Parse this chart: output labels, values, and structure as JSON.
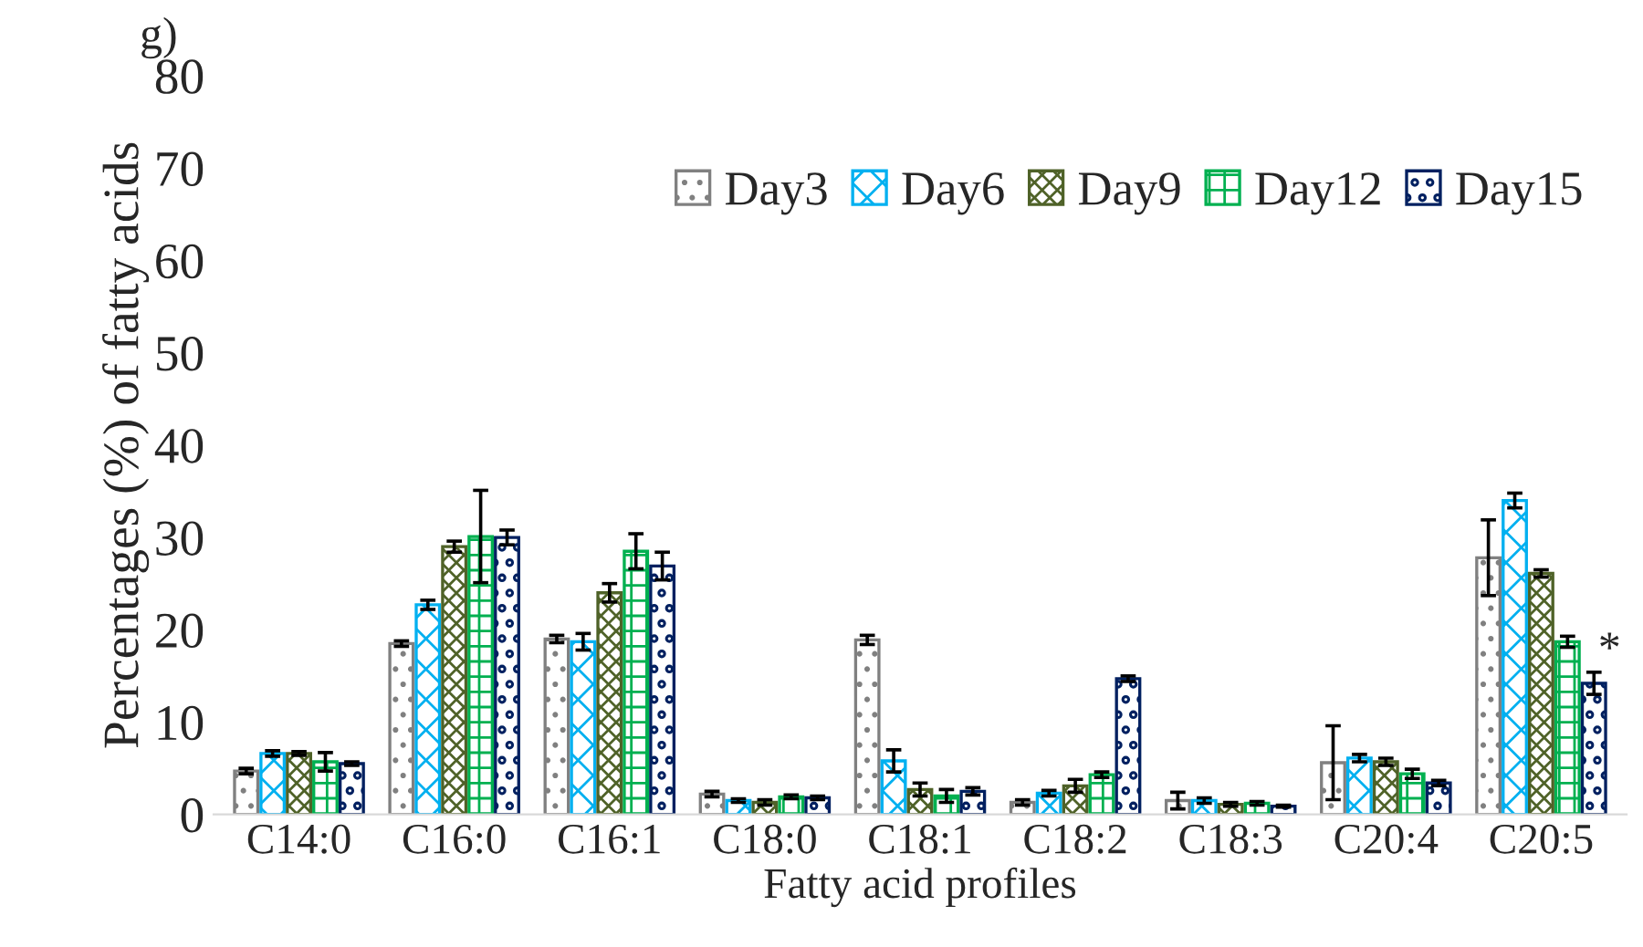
{
  "chart_data": {
    "type": "bar",
    "xlabel": "Fatty acid profiles",
    "ylabel": "Percentages (%) of fatty acids",
    "categories": [
      "C14:0",
      "C16:0",
      "C16:1",
      "C18:0",
      "C18:1",
      "C18:2",
      "C18:3",
      "C20:4",
      "C20:5"
    ],
    "ylim": [
      0,
      80
    ],
    "yticks": [
      0,
      10,
      20,
      30,
      40,
      50,
      60,
      70,
      80
    ],
    "grid": false,
    "legend": "top right",
    "annotations": [
      "g)",
      "*"
    ],
    "series": [
      {
        "name": "Day3",
        "color": "#808080",
        "values": [
          4.7,
          18.5,
          19.0,
          2.2,
          18.9,
          1.3,
          1.5,
          5.6,
          27.8
        ],
        "errors": [
          0.3,
          0.3,
          0.4,
          0.3,
          0.5,
          0.3,
          0.9,
          4.0,
          4.1
        ]
      },
      {
        "name": "Day6",
        "color": "#00b0f0",
        "values": [
          6.6,
          22.7,
          18.7,
          1.5,
          5.8,
          2.3,
          1.5,
          6.1,
          34.0
        ],
        "errors": [
          0.3,
          0.5,
          0.9,
          0.2,
          1.2,
          0.3,
          0.3,
          0.4,
          0.8
        ]
      },
      {
        "name": "Day9",
        "color": "#4f6228",
        "values": [
          6.6,
          29.0,
          24.0,
          1.3,
          2.7,
          3.1,
          1.1,
          5.7,
          26.1
        ],
        "errors": [
          0.2,
          0.6,
          1.0,
          0.3,
          0.7,
          0.7,
          0.2,
          0.4,
          0.4
        ]
      },
      {
        "name": "Day12",
        "color": "#00b050",
        "values": [
          5.7,
          30.1,
          28.5,
          1.9,
          2.0,
          4.3,
          1.2,
          4.4,
          18.7
        ],
        "errors": [
          1.0,
          5.0,
          1.9,
          0.2,
          0.7,
          0.3,
          0.2,
          0.5,
          0.6
        ]
      },
      {
        "name": "Day15",
        "color": "#002060",
        "values": [
          5.5,
          30.0,
          26.9,
          1.8,
          2.5,
          14.7,
          0.9,
          3.4,
          14.2
        ],
        "errors": [
          0.2,
          0.8,
          1.5,
          0.2,
          0.4,
          0.3,
          0.1,
          0.3,
          1.2
        ]
      }
    ]
  }
}
